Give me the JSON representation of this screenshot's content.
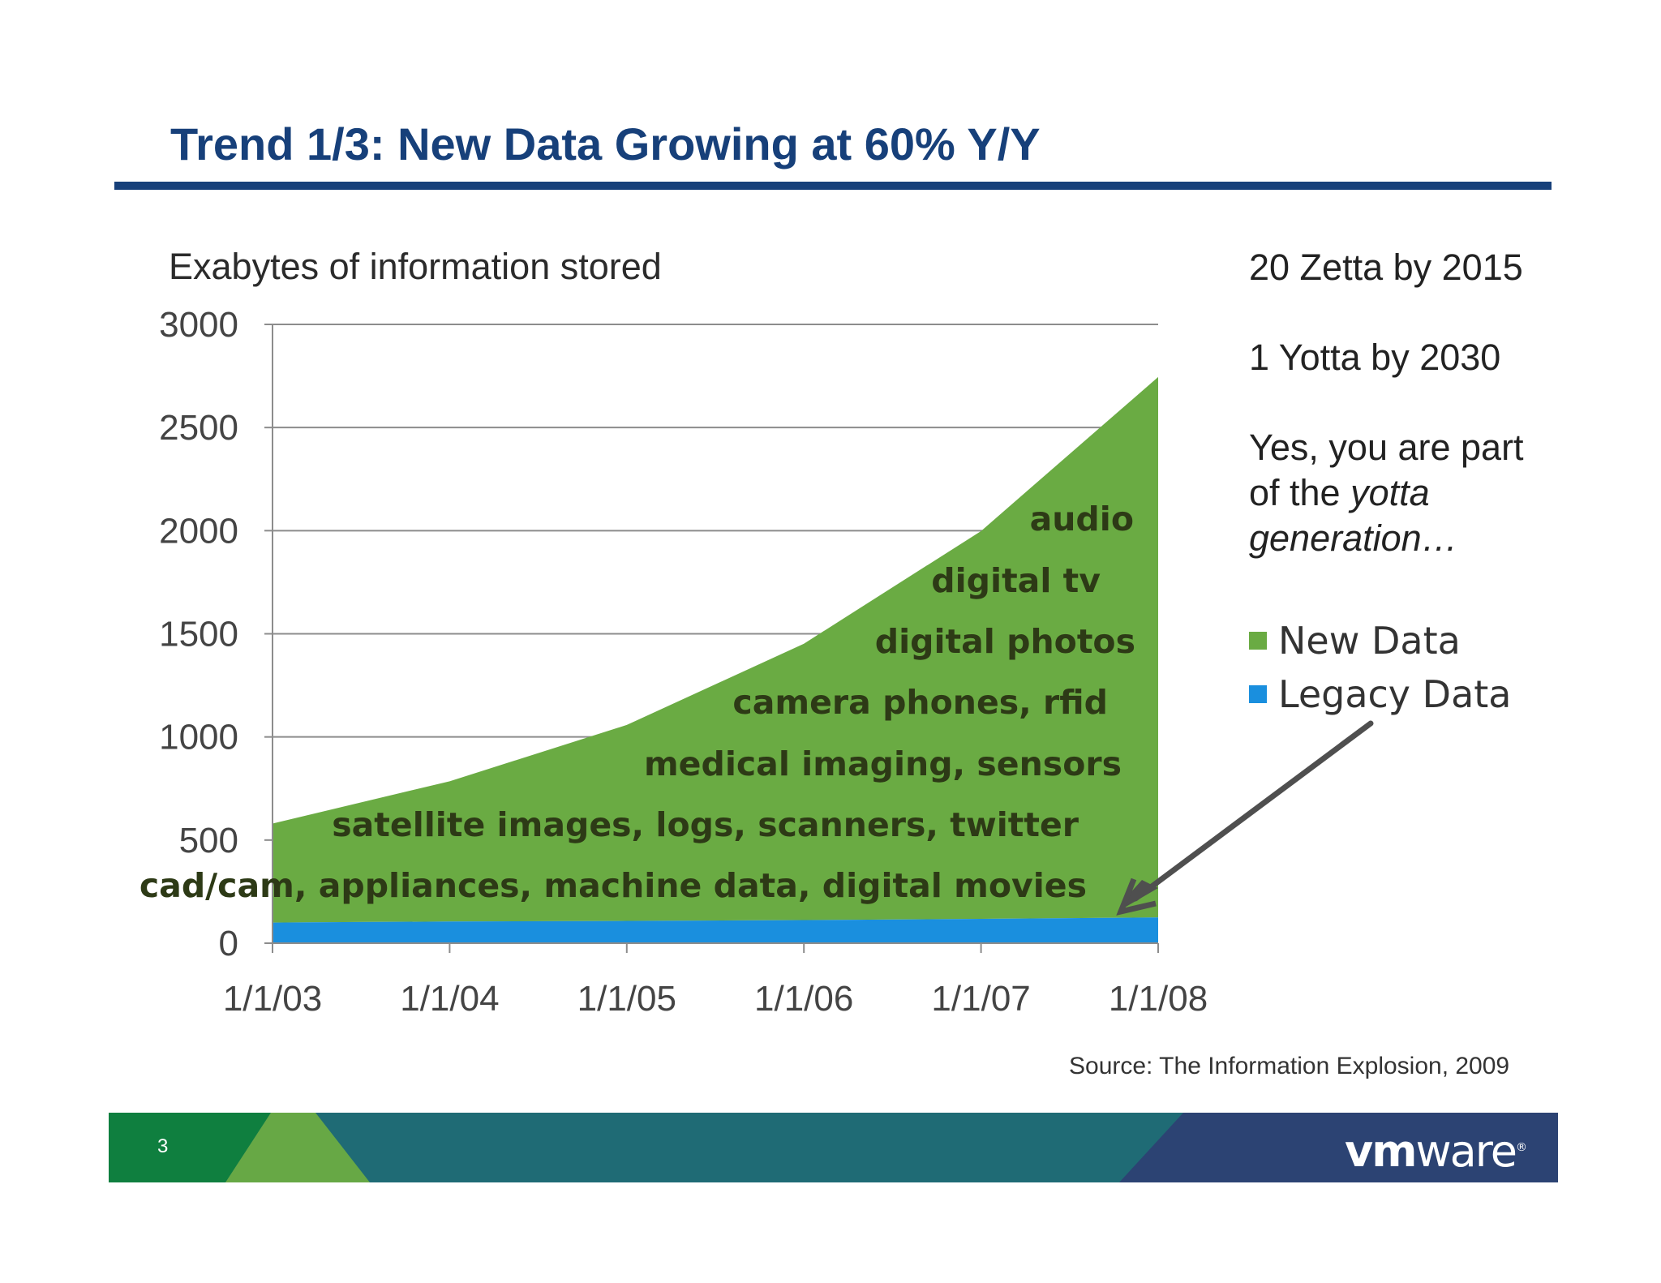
{
  "slide": {
    "title": "Trend 1/3: New Data Growing at 60% Y/Y",
    "chart_label": "Exabytes of information stored",
    "source": "Source: The Information Explosion, 2009",
    "page_number": "3",
    "logo_text_bold": "vm",
    "logo_text": "ware",
    "logo_mark": "®"
  },
  "side_notes": {
    "zetta": "20 Zetta by 2015",
    "yotta": "1 Yotta by 2030",
    "part_line1": "Yes, you are part",
    "part_line2_prefix": "of the ",
    "part_line2_italic": "yotta",
    "part_line3": "generation…"
  },
  "chart_data": {
    "type": "area",
    "x": [
      "1/1/03",
      "1/1/04",
      "1/1/05",
      "1/1/06",
      "1/1/07",
      "1/1/08"
    ],
    "ylim": [
      0,
      3000
    ],
    "yticks": [
      0,
      500,
      1000,
      1500,
      2000,
      2500,
      3000
    ],
    "stacked": true,
    "grid": true,
    "series": [
      {
        "name": "Legacy Data",
        "values": [
          100,
          105,
          108,
          112,
          118,
          125
        ],
        "color": "#1a8fde"
      },
      {
        "name": "New Data",
        "values": [
          480,
          680,
          950,
          1340,
          1880,
          2620
        ],
        "color": "#6aab43"
      }
    ],
    "legend": {
      "placement": "right",
      "order": [
        "New Data",
        "Legacy Data"
      ]
    },
    "annotations": [
      "audio",
      "digital tv",
      "digital photos",
      "camera phones, rfid",
      "medical imaging, sensors",
      "satellite images, logs, scanners, twitter",
      "cad/cam, appliances, machine data, digital movies"
    ]
  },
  "colors": {
    "title": "#17407a",
    "new_data": "#6aab43",
    "legacy_data": "#1a8fde",
    "annotation_text": "#2d3a16",
    "footer_green": "#0f7f3f",
    "footer_light_green": "#67a845",
    "footer_teal": "#1f6b75",
    "footer_navy": "#2c4373"
  }
}
